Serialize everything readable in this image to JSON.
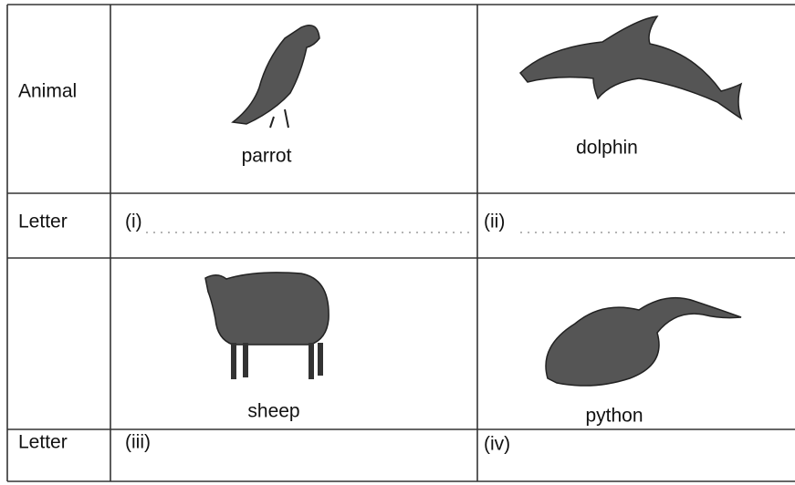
{
  "table": {
    "rows": [
      {
        "header": "Animal",
        "cells": [
          "parrot",
          "dolphin"
        ]
      },
      {
        "header": "Letter",
        "cells": [
          "(i)",
          "(ii)"
        ]
      },
      {
        "cells": [
          "sheep",
          "python"
        ]
      },
      {
        "header": "Letter",
        "cells": [
          "(iii)",
          "(iv)"
        ]
      }
    ]
  }
}
